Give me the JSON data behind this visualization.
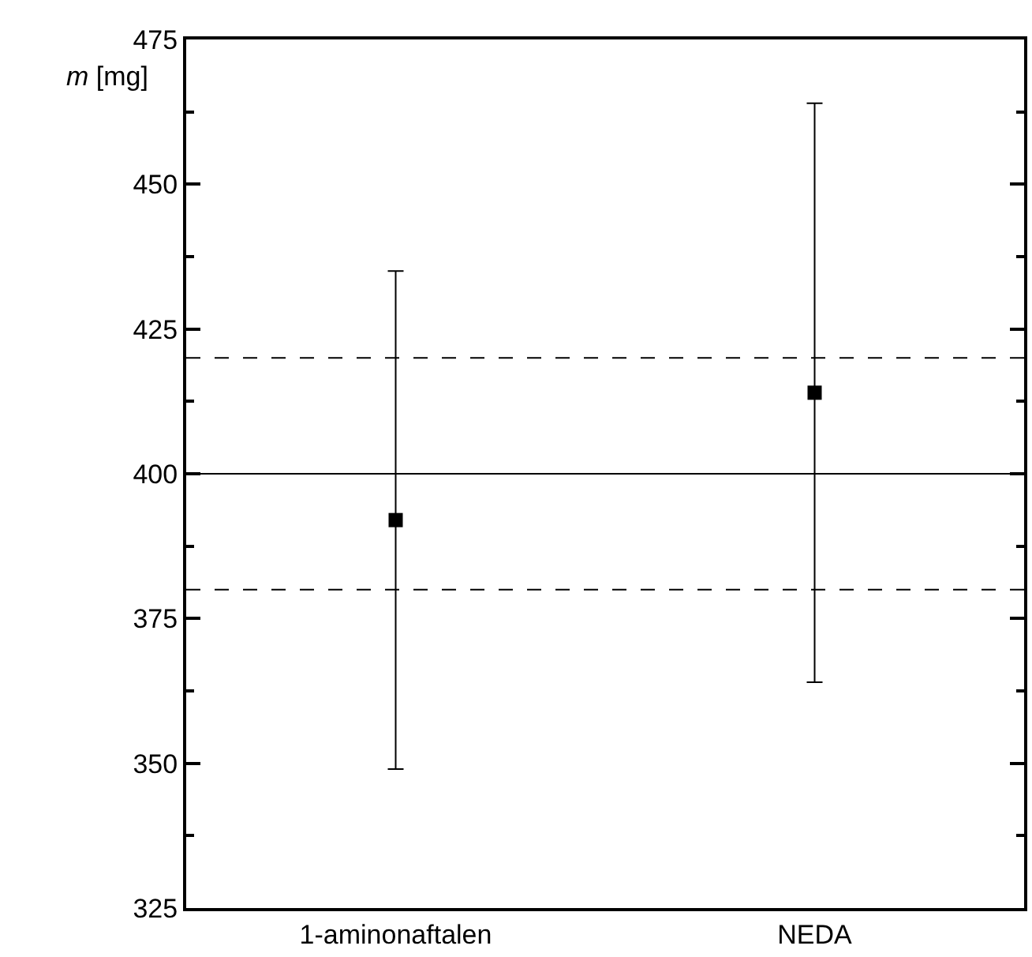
{
  "chart_data": {
    "type": "scatter",
    "ylabel": "m [mg]",
    "categories": [
      "1-aminonaftalen",
      "NEDA"
    ],
    "series": [
      {
        "color": "#000000",
        "values": [
          392,
          414
        ],
        "errors": [
          43,
          50
        ]
      }
    ],
    "marker": "square",
    "ylim": [
      325,
      475
    ],
    "yticks": [
      325,
      350,
      375,
      400,
      425,
      450,
      475
    ],
    "ref_lines": [
      {
        "axis": "y",
        "value": 400,
        "line_style": "solid",
        "color": "#000000"
      },
      {
        "axis": "y",
        "value": 420,
        "line_style": "dashed",
        "color": "#000000"
      },
      {
        "axis": "y",
        "value": 380,
        "line_style": "dashed",
        "color": "#000000"
      }
    ],
    "grid": false,
    "legend": false
  }
}
